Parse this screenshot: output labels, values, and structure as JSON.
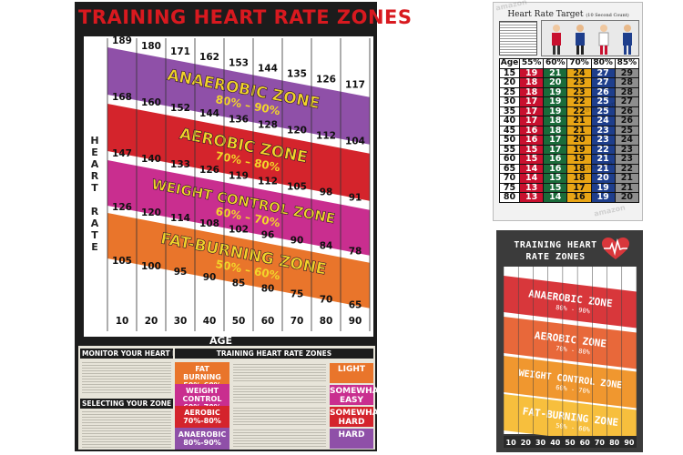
{
  "poster_a": {
    "title": "TRAINING HEART RATE ZONES",
    "y_label_letters": [
      "H",
      "E",
      "A",
      "R",
      "T",
      "",
      "R",
      "A",
      "T",
      "E"
    ],
    "x_label": "AGE",
    "rows": [
      [
        "189",
        "180",
        "171",
        "162",
        "153",
        "144",
        "135",
        "126",
        "117"
      ],
      [
        "168",
        "160",
        "152",
        "144",
        "136",
        "128",
        "120",
        "112",
        "104"
      ],
      [
        "147",
        "140",
        "133",
        "126",
        "119",
        "112",
        "105",
        "98",
        "91"
      ],
      [
        "126",
        "120",
        "114",
        "108",
        "102",
        "96",
        "90",
        "84",
        "78"
      ],
      [
        "105",
        "100",
        "95",
        "90",
        "85",
        "80",
        "75",
        "70",
        "65"
      ],
      [
        "10",
        "20",
        "30",
        "40",
        "50",
        "60",
        "70",
        "80",
        "90"
      ]
    ],
    "zones": [
      {
        "name": "ANAEROBIC ZONE",
        "range": "80% – 90%",
        "color": "#8f50a8"
      },
      {
        "name": "AEROBIC ZONE",
        "range": "70% – 80%",
        "color": "#d4242c"
      },
      {
        "name": "WEIGHT CONTROL ZONE",
        "range": "60% – 70%",
        "color": "#c92e8f"
      },
      {
        "name": "FAT-BURNING ZONE",
        "range": "50% – 60%",
        "color": "#e9752b"
      }
    ],
    "text_color": "#f2d52a",
    "bottom": {
      "monitor_header": "MONITOR YOUR HEART RATE",
      "selecting_header": "SELECTING YOUR ZONE",
      "zones_header": "TRAINING HEART RATE ZONES",
      "zone_rows": [
        {
          "name": "FAT BURNING",
          "range": "50%-60%",
          "intensity": "LIGHT",
          "color": "#e9752b"
        },
        {
          "name": "WEIGHT CONTROL",
          "range": "60%-70%",
          "intensity": "SOMEWHAT EASY",
          "color": "#c92e8f"
        },
        {
          "name": "AEROBIC",
          "range": "70%-80%",
          "intensity": "SOMEWHAT HARD",
          "color": "#d4242c"
        },
        {
          "name": "ANAEROBIC",
          "range": "80%-90%",
          "intensity": "HARD",
          "color": "#8f50a8"
        }
      ]
    }
  },
  "poster_b": {
    "title": "Heart Rate Target",
    "title_note": "(10 Second Count)",
    "headers": [
      "Age",
      "55%",
      "60%",
      "70%",
      "80%",
      "85%"
    ],
    "rows": [
      [
        "15",
        "19",
        "21",
        "24",
        "27",
        "29"
      ],
      [
        "20",
        "18",
        "20",
        "23",
        "27",
        "28"
      ],
      [
        "25",
        "18",
        "19",
        "23",
        "26",
        "28"
      ],
      [
        "30",
        "17",
        "19",
        "22",
        "25",
        "27"
      ],
      [
        "35",
        "17",
        "19",
        "22",
        "25",
        "26"
      ],
      [
        "40",
        "17",
        "18",
        "21",
        "24",
        "26"
      ],
      [
        "45",
        "16",
        "18",
        "21",
        "23",
        "25"
      ],
      [
        "50",
        "16",
        "17",
        "20",
        "23",
        "24"
      ],
      [
        "55",
        "15",
        "17",
        "19",
        "22",
        "23"
      ],
      [
        "60",
        "15",
        "16",
        "19",
        "21",
        "23"
      ],
      [
        "65",
        "14",
        "16",
        "18",
        "21",
        "22"
      ],
      [
        "70",
        "14",
        "15",
        "18",
        "20",
        "21"
      ],
      [
        "75",
        "13",
        "15",
        "17",
        "19",
        "21"
      ],
      [
        "80",
        "13",
        "14",
        "16",
        "19",
        "20"
      ]
    ],
    "watermark": "amazon"
  },
  "poster_c": {
    "title_line1": "TRAINING HEART",
    "title_line2": "RATE ZONES",
    "zones": [
      {
        "name": "ANAEROBIC ZONE",
        "range": "80% - 90%",
        "color": "#d8373b"
      },
      {
        "name": "AEROBIC ZONE",
        "range": "70% - 80%",
        "color": "#e8683a"
      },
      {
        "name": "WEIGHT CONTROL ZONE",
        "range": "60% - 70%",
        "color": "#f0972f"
      },
      {
        "name": "FAT-BURNING ZONE",
        "range": "50% - 60%",
        "color": "#f7bf3d"
      }
    ],
    "ages": [
      "10",
      "20",
      "30",
      "40",
      "50",
      "60",
      "70",
      "80",
      "90"
    ]
  }
}
